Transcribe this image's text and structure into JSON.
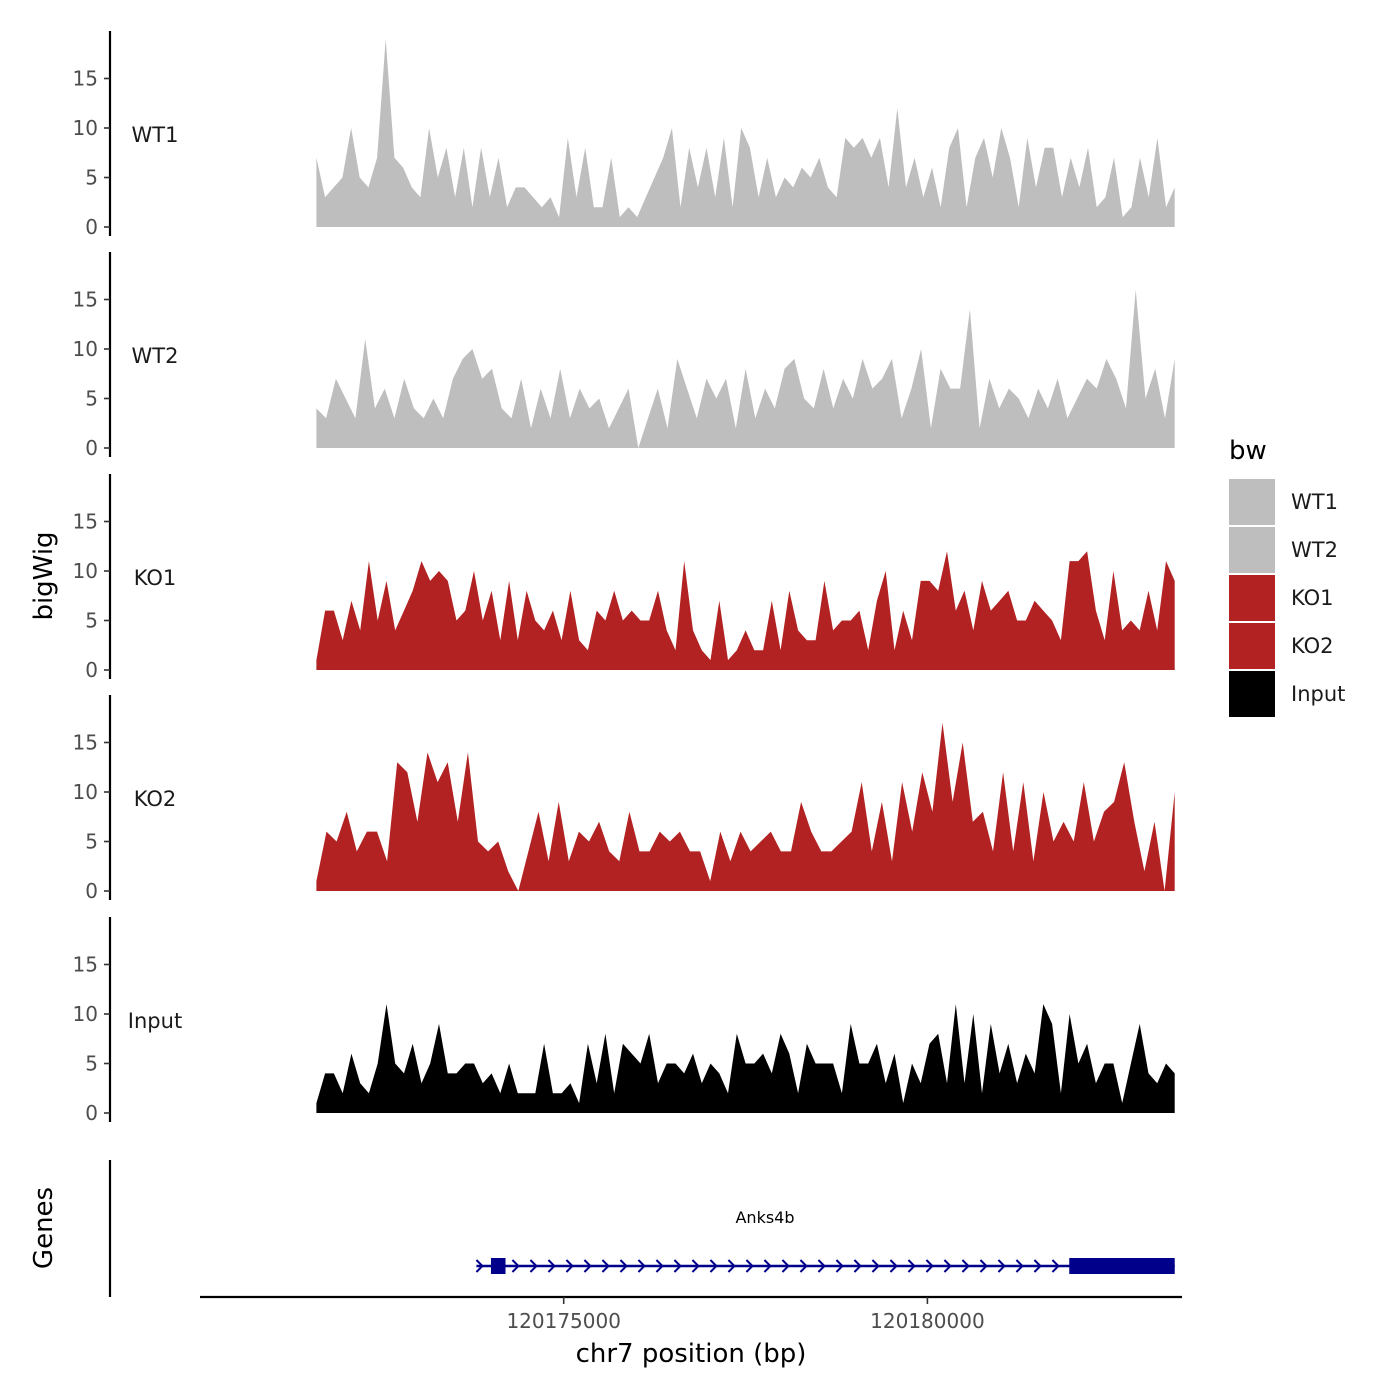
{
  "chart_data": {
    "type": "area",
    "ylabel": "bigWig",
    "xlabel": "chr7 position (bp)",
    "xlim": [
      120170000,
      120183500
    ],
    "signal_range": [
      120171600,
      120183400
    ],
    "ylim": [
      0,
      20
    ],
    "yticks": [
      0,
      5,
      10,
      15
    ],
    "xticks": [
      120175000,
      120180000
    ],
    "xtick_labels": [
      "120175000",
      "120180000"
    ],
    "tracks": [
      {
        "name": "WT1",
        "color": "#bebebe",
        "values": [
          7,
          3,
          4,
          5,
          10,
          5,
          4,
          7,
          19,
          7,
          6,
          4,
          3,
          10,
          5,
          8,
          3,
          8,
          2,
          8,
          3,
          7,
          2,
          4,
          4,
          3,
          2,
          3,
          1,
          9,
          3,
          8,
          2,
          2,
          7,
          1,
          2,
          1,
          3,
          5,
          7,
          10,
          2,
          8,
          4,
          8,
          3,
          9,
          2,
          10,
          8,
          3,
          7,
          3,
          5,
          4,
          6,
          5,
          7,
          4,
          3,
          9,
          8,
          9,
          7,
          9,
          4,
          12,
          4,
          7,
          3,
          6,
          2,
          8,
          10,
          2,
          7,
          9,
          5,
          10,
          7,
          2,
          9,
          4,
          8,
          8,
          3,
          7,
          4,
          8,
          2,
          3,
          7,
          1,
          2,
          7,
          3,
          9,
          2,
          4
        ]
      },
      {
        "name": "WT2",
        "color": "#bebebe",
        "values": [
          4,
          3,
          7,
          5,
          3,
          11,
          4,
          6,
          3,
          7,
          4,
          3,
          5,
          3,
          7,
          9,
          10,
          7,
          8,
          4,
          3,
          7,
          2,
          6,
          3,
          8,
          3,
          6,
          4,
          5,
          2,
          4,
          6,
          0,
          3,
          6,
          2,
          9,
          6,
          3,
          7,
          5,
          7,
          2,
          8,
          3,
          6,
          4,
          8,
          9,
          5,
          4,
          8,
          4,
          7,
          5,
          9,
          6,
          7,
          9,
          3,
          6,
          10,
          2,
          8,
          6,
          6,
          14,
          2,
          7,
          4,
          6,
          5,
          3,
          6,
          4,
          7,
          3,
          5,
          7,
          6,
          9,
          7,
          4,
          16,
          5,
          8,
          3,
          9
        ]
      },
      {
        "name": "KO1",
        "color": "#b22222",
        "values": [
          1,
          6,
          6,
          3,
          7,
          4,
          11,
          5,
          9,
          4,
          6,
          8,
          11,
          9,
          10,
          9,
          5,
          6,
          10,
          5,
          8,
          3,
          9,
          3,
          8,
          5,
          4,
          6,
          3,
          8,
          3,
          2,
          6,
          5,
          8,
          5,
          6,
          5,
          5,
          8,
          4,
          2,
          11,
          4,
          2,
          1,
          7,
          1,
          2,
          4,
          2,
          2,
          7,
          2,
          8,
          4,
          3,
          3,
          9,
          4,
          5,
          5,
          6,
          2,
          7,
          10,
          2,
          6,
          3,
          9,
          9,
          8,
          12,
          6,
          8,
          4,
          9,
          6,
          7,
          8,
          5,
          5,
          7,
          6,
          5,
          3,
          11,
          11,
          12,
          6,
          3,
          10,
          4,
          5,
          4,
          8,
          4,
          11,
          9
        ]
      },
      {
        "name": "KO2",
        "color": "#b22222",
        "values": [
          1,
          6,
          5,
          8,
          4,
          6,
          6,
          3,
          13,
          12,
          7,
          14,
          11,
          13,
          7,
          14,
          5,
          4,
          5,
          2,
          0,
          4,
          8,
          3,
          9,
          3,
          6,
          5,
          7,
          4,
          3,
          8,
          4,
          4,
          6,
          5,
          6,
          4,
          4,
          1,
          6,
          3,
          6,
          4,
          5,
          6,
          4,
          4,
          9,
          6,
          4,
          4,
          5,
          6,
          11,
          4,
          9,
          3,
          11,
          6,
          12,
          8,
          17,
          9,
          15,
          7,
          8,
          4,
          12,
          4,
          11,
          3,
          10,
          5,
          7,
          5,
          11,
          5,
          8,
          9,
          13,
          7,
          2,
          7,
          0,
          10
        ]
      },
      {
        "name": "Input",
        "color": "#000000",
        "values": [
          1,
          4,
          4,
          2,
          6,
          3,
          2,
          5,
          11,
          5,
          4,
          7,
          3,
          5,
          9,
          4,
          4,
          5,
          5,
          3,
          4,
          2,
          5,
          2,
          2,
          2,
          7,
          2,
          2,
          3,
          1,
          7,
          3,
          8,
          2,
          7,
          6,
          5,
          8,
          3,
          5,
          5,
          4,
          6,
          3,
          5,
          4,
          2,
          8,
          5,
          5,
          6,
          4,
          8,
          6,
          2,
          7,
          5,
          5,
          5,
          2,
          9,
          5,
          5,
          7,
          3,
          6,
          1,
          5,
          3,
          7,
          8,
          3,
          11,
          3,
          10,
          2,
          9,
          4,
          7,
          3,
          6,
          4,
          11,
          9,
          2,
          10,
          5,
          7,
          3,
          5,
          5,
          1,
          5,
          9,
          4,
          3,
          5,
          4
        ]
      }
    ],
    "gene_track": {
      "label": "Genes",
      "genes": [
        {
          "name": "Anks4b",
          "color": "#00008b",
          "strand": "+",
          "start": 120173800,
          "end": 120183400,
          "exons": [
            [
              120174000,
              120174200
            ],
            [
              120181950,
              120183400
            ]
          ]
        }
      ]
    },
    "legend": {
      "title": "bw",
      "position": "right",
      "items": [
        {
          "label": "WT1",
          "color": "#bebebe"
        },
        {
          "label": "WT2",
          "color": "#bebebe"
        },
        {
          "label": "KO1",
          "color": "#b22222"
        },
        {
          "label": "KO2",
          "color": "#b22222"
        },
        {
          "label": "Input",
          "color": "#000000"
        }
      ]
    }
  }
}
